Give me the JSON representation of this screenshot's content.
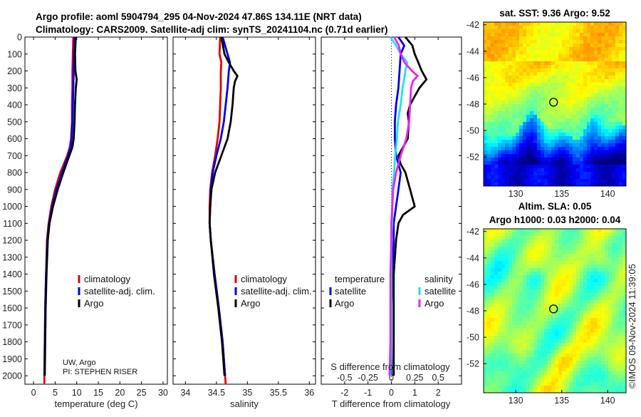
{
  "header": {
    "title_line1": "Argo profile: aoml 5904794_295 04-Nov-2024 47.86S 134.11E (NRT data)",
    "title_line2": "Climatology: CARS2009. Satellite-adj clim: synTS_20241104.nc (0.71d earlier)"
  },
  "credit": {
    "line1": "UW, Argo",
    "line2": "PI: STEPHEN RISER"
  },
  "timestamp": "©IMOS 09-Nov-2024 11:39:05",
  "colors": {
    "climatology": "#e00000",
    "satellite": "#0000e8",
    "argo": "#000000",
    "cyan": "#22e0f0",
    "magenta": "#f020f0"
  },
  "chart_data": [
    {
      "type": "line",
      "panel": "temperature",
      "xlabel": "temperature (deg C)",
      "xlim": [
        -2,
        31
      ],
      "ylim": [
        0,
        2050
      ],
      "x_ticks": [
        0,
        5,
        10,
        15,
        20,
        25,
        30
      ],
      "y_ticks": [
        0,
        100,
        200,
        300,
        400,
        500,
        600,
        700,
        800,
        900,
        1000,
        1100,
        1200,
        1300,
        1400,
        1500,
        1600,
        1700,
        1800,
        1900,
        2000
      ],
      "legend": [
        "climatology",
        "satellite-adj. clim.",
        "Argo"
      ],
      "series": [
        {
          "name": "climatology",
          "depth": [
            0,
            100,
            200,
            300,
            400,
            500,
            600,
            650,
            700,
            800,
            900,
            1000,
            1100,
            1200,
            1400,
            1600,
            1800,
            2000,
            2050
          ],
          "values": [
            9.2,
            9.1,
            9.0,
            9.0,
            8.9,
            8.9,
            8.7,
            8.4,
            7.8,
            6.2,
            5.0,
            4.1,
            3.5,
            3.1,
            2.9,
            2.7,
            2.6,
            2.5,
            2.5
          ]
        },
        {
          "name": "satellite-adj. clim.",
          "depth": [
            0,
            100,
            200,
            300,
            400,
            500,
            600,
            650,
            700,
            800,
            900,
            1000,
            1100,
            1200,
            1400,
            1600,
            1800,
            2000
          ],
          "values": [
            9.5,
            9.4,
            9.3,
            9.2,
            9.1,
            9.0,
            8.8,
            8.6,
            8.0,
            6.6,
            5.3,
            4.3,
            3.6,
            3.2,
            2.9,
            2.7,
            2.6,
            2.5
          ]
        },
        {
          "name": "Argo",
          "depth": [
            0,
            100,
            200,
            250,
            300,
            400,
            500,
            600,
            650,
            700,
            800,
            900,
            1000,
            1100,
            1200,
            1400,
            1600,
            1800,
            2000
          ],
          "values": [
            9.8,
            9.6,
            9.7,
            10.0,
            9.8,
            9.6,
            9.5,
            9.3,
            9.0,
            8.3,
            6.9,
            5.6,
            4.5,
            3.7,
            3.3,
            3.0,
            2.8,
            2.7,
            2.6
          ]
        }
      ]
    },
    {
      "type": "line",
      "panel": "salinity",
      "xlabel": "salinity",
      "xlim": [
        33.8,
        36.1
      ],
      "ylim": [
        0,
        2050
      ],
      "x_ticks": [
        34,
        34.5,
        35,
        35.5,
        36
      ],
      "legend": [
        "climatology",
        "satellite-adj. clim.",
        "Argo"
      ],
      "series": [
        {
          "name": "climatology",
          "depth": [
            0,
            100,
            150,
            200,
            300,
            400,
            500,
            600,
            700,
            800,
            900,
            1000,
            1100,
            1200,
            1400,
            1600,
            1800,
            2000,
            2050
          ],
          "values": [
            34.56,
            34.55,
            34.58,
            34.57,
            34.57,
            34.56,
            34.55,
            34.52,
            34.48,
            34.43,
            34.4,
            34.39,
            34.39,
            34.41,
            34.47,
            34.54,
            34.6,
            34.64,
            34.65
          ]
        },
        {
          "name": "satellite-adj. clim.",
          "depth": [
            0,
            100,
            150,
            200,
            300,
            400,
            500,
            600,
            700,
            800,
            900,
            1000,
            1100,
            1200,
            1400,
            1600,
            1800,
            2000
          ],
          "values": [
            34.6,
            34.68,
            34.72,
            34.7,
            34.68,
            34.65,
            34.62,
            34.57,
            34.5,
            34.44,
            34.41,
            34.4,
            34.39,
            34.41,
            34.47,
            34.54,
            34.6,
            34.64
          ]
        },
        {
          "name": "Argo",
          "depth": [
            0,
            100,
            150,
            200,
            230,
            260,
            300,
            400,
            500,
            600,
            700,
            800,
            900,
            1000,
            1100,
            1200,
            1400,
            1600,
            1800,
            2000
          ],
          "values": [
            34.58,
            34.63,
            34.7,
            34.78,
            34.84,
            34.8,
            34.78,
            34.76,
            34.73,
            34.68,
            34.58,
            34.48,
            34.42,
            34.4,
            34.39,
            34.41,
            34.46,
            34.53,
            34.59,
            34.63
          ]
        }
      ]
    },
    {
      "type": "line",
      "panel": "difference",
      "xlabel": "T difference from climatology",
      "xlabel_top": "S difference from climatology",
      "xlim": [
        -3,
        3
      ],
      "ylim": [
        0,
        2050
      ],
      "x_ticks": [
        -2,
        -1,
        0,
        1,
        2
      ],
      "s_tick_labels": [
        "-0.5",
        "-0.25",
        "0",
        "0.25",
        "0.5"
      ],
      "legend_temperature_title": "temperature",
      "legend_salinity_title": "salinity",
      "legend_labels": [
        "satellite",
        "Argo",
        "satellite",
        "Argo"
      ],
      "series": [
        {
          "name": "T satellite",
          "depth": [
            0,
            50,
            100,
            200,
            300,
            400,
            500,
            600,
            700,
            800,
            900,
            1000,
            1100,
            1200,
            1400,
            1600,
            1800,
            2000
          ],
          "values": [
            0.3,
            0.55,
            0.4,
            0.35,
            0.3,
            0.2,
            0.15,
            0.15,
            0.2,
            0.4,
            0.3,
            0.2,
            0.1,
            0.1,
            0.05,
            0.0,
            0.0,
            0.0
          ]
        },
        {
          "name": "T Argo",
          "depth": [
            0,
            50,
            100,
            150,
            200,
            250,
            300,
            350,
            400,
            450,
            500,
            600,
            650,
            700,
            750,
            800,
            850,
            900,
            950,
            1000,
            1050,
            1100,
            1200,
            1400,
            1600,
            1800,
            2000
          ],
          "values": [
            0.6,
            0.9,
            1.0,
            1.15,
            1.3,
            1.5,
            1.2,
            1.0,
            0.8,
            0.7,
            0.75,
            0.7,
            0.5,
            0.3,
            0.4,
            0.6,
            0.7,
            0.8,
            0.9,
            1.0,
            0.5,
            0.3,
            0.2,
            0.1,
            0.1,
            0.1,
            0.1
          ]
        },
        {
          "name": "S satellite",
          "depth": [
            0,
            50,
            100,
            150,
            200,
            300,
            400,
            500,
            600,
            700,
            800,
            900,
            1000,
            1100,
            1200,
            1400,
            1600,
            1800,
            2000
          ],
          "values": [
            -0.01,
            0.05,
            0.1,
            0.17,
            0.15,
            0.12,
            0.1,
            0.07,
            0.06,
            0.04,
            0.03,
            0.01,
            0.01,
            0.01,
            0.0,
            0.0,
            0.0,
            0.0,
            -0.01
          ]
        },
        {
          "name": "S Argo",
          "depth": [
            0,
            50,
            100,
            150,
            200,
            230,
            260,
            300,
            400,
            500,
            600,
            700,
            800,
            900,
            1000,
            1100,
            1200,
            1400,
            1600,
            1800,
            2000
          ],
          "values": [
            0.03,
            0.08,
            0.1,
            0.14,
            0.22,
            0.28,
            0.23,
            0.21,
            0.2,
            0.19,
            0.16,
            0.1,
            0.05,
            0.02,
            0.01,
            0.0,
            0.0,
            -0.01,
            -0.01,
            -0.01,
            -0.02
          ]
        }
      ]
    },
    {
      "type": "heatmap",
      "panel": "sst-map",
      "title": "sat. SST: 9.36 Argo: 9.52",
      "x_ticks": [
        130,
        135,
        140
      ],
      "y_ticks": [
        -42,
        -44,
        -46,
        -48,
        -50,
        -52
      ],
      "xlim": [
        126.5,
        142
      ],
      "ylim": [
        -54.2,
        -41.8
      ],
      "marker": {
        "lon": 134.11,
        "lat": -47.86
      }
    },
    {
      "type": "heatmap",
      "panel": "sla-map",
      "title_line1": "Altim. SLA: 0.05",
      "title_line2": "Argo h1000: 0.03 h2000: 0.04",
      "x_ticks": [
        130,
        135,
        140
      ],
      "y_ticks": [
        -42,
        -44,
        -46,
        -48,
        -50,
        -52
      ],
      "xlim": [
        126.5,
        142
      ],
      "ylim": [
        -54.2,
        -41.8
      ],
      "marker": {
        "lon": 134.11,
        "lat": -47.86
      }
    }
  ]
}
